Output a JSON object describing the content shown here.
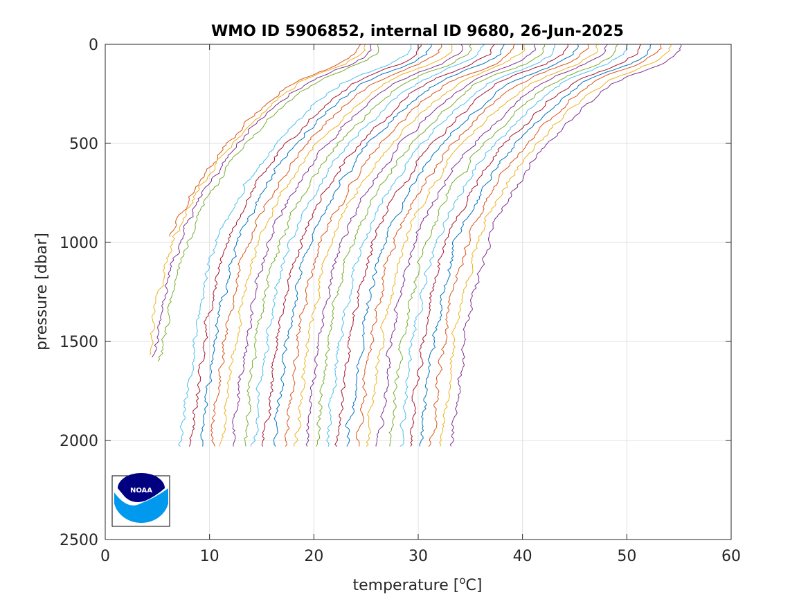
{
  "chart_data": {
    "type": "line",
    "title": "WMO ID 5906852, internal ID 9680, 26-Jun-2025",
    "xlabel": "temperature [",
    "xlabel_sup": "o",
    "xlabel_unit": "C]",
    "ylabel": "pressure [dbar]",
    "xlim": [
      0,
      60
    ],
    "ylim": [
      0,
      2500
    ],
    "y_reversed": true,
    "grid": true,
    "x_ticks": [
      "0",
      "10",
      "20",
      "30",
      "40",
      "50",
      "60"
    ],
    "y_ticks": [
      "0",
      "500",
      "1000",
      "1500",
      "2000",
      "2500"
    ],
    "profile_shape": {
      "pressure": [
        0,
        25,
        50,
        100,
        150,
        200,
        300,
        400,
        500,
        600,
        700,
        800,
        900,
        1000,
        1200,
        1400,
        1600,
        1800,
        2000,
        2030
      ],
      "temperature": [
        0,
        -0.1,
        -0.4,
        -2.0,
        -4.5,
        -6.5,
        -9.0,
        -11.0,
        -12.8,
        -14.3,
        -15.6,
        -16.7,
        -17.7,
        -18.5,
        -19.6,
        -20.4,
        -21.0,
        -21.5,
        -21.9,
        -22.0
      ]
    },
    "series": [
      {
        "name": "",
        "color": "#d95319",
        "surface_temp": 24.5,
        "max_pressure": 970
      },
      {
        "name": "",
        "color": "#edb120",
        "surface_temp": 25.0,
        "max_pressure": 1570
      },
      {
        "name": "",
        "color": "#7e2f8e",
        "surface_temp": 25.6,
        "max_pressure": 1580
      },
      {
        "name": "",
        "color": "#77ac30",
        "surface_temp": 26.3,
        "max_pressure": 1600
      },
      {
        "name": "",
        "color": "#4dbeee",
        "surface_temp": 29.2,
        "max_pressure": 2030
      },
      {
        "name": "",
        "color": "#a2142f",
        "surface_temp": 30.2,
        "max_pressure": 2030
      },
      {
        "name": "",
        "color": "#0072bd",
        "surface_temp": 31.2,
        "max_pressure": 2030
      },
      {
        "name": "",
        "color": "#d95319",
        "surface_temp": 32.2,
        "max_pressure": 2030
      },
      {
        "name": "",
        "color": "#edb120",
        "surface_temp": 33.2,
        "max_pressure": 2030
      },
      {
        "name": "",
        "color": "#7e2f8e",
        "surface_temp": 34.2,
        "max_pressure": 2030
      },
      {
        "name": "",
        "color": "#77ac30",
        "surface_temp": 35.2,
        "max_pressure": 2030
      },
      {
        "name": "",
        "color": "#4dbeee",
        "surface_temp": 36.2,
        "max_pressure": 2030
      },
      {
        "name": "",
        "color": "#a2142f",
        "surface_temp": 37.2,
        "max_pressure": 2030
      },
      {
        "name": "",
        "color": "#0072bd",
        "surface_temp": 38.2,
        "max_pressure": 2030
      },
      {
        "name": "",
        "color": "#d95319",
        "surface_temp": 39.2,
        "max_pressure": 2030
      },
      {
        "name": "",
        "color": "#edb120",
        "surface_temp": 40.2,
        "max_pressure": 2030
      },
      {
        "name": "",
        "color": "#7e2f8e",
        "surface_temp": 41.2,
        "max_pressure": 2030
      },
      {
        "name": "",
        "color": "#77ac30",
        "surface_temp": 42.2,
        "max_pressure": 2030
      },
      {
        "name": "",
        "color": "#4dbeee",
        "surface_temp": 43.2,
        "max_pressure": 2030
      },
      {
        "name": "",
        "color": "#a2142f",
        "surface_temp": 44.2,
        "max_pressure": 2030
      },
      {
        "name": "",
        "color": "#0072bd",
        "surface_temp": 45.2,
        "max_pressure": 2030
      },
      {
        "name": "",
        "color": "#d95319",
        "surface_temp": 46.2,
        "max_pressure": 2030
      },
      {
        "name": "",
        "color": "#edb120",
        "surface_temp": 47.2,
        "max_pressure": 2030
      },
      {
        "name": "",
        "color": "#7e2f8e",
        "surface_temp": 48.2,
        "max_pressure": 2030
      },
      {
        "name": "",
        "color": "#77ac30",
        "surface_temp": 49.2,
        "max_pressure": 2030
      },
      {
        "name": "",
        "color": "#4dbeee",
        "surface_temp": 50.2,
        "max_pressure": 2030
      },
      {
        "name": "",
        "color": "#a2142f",
        "surface_temp": 51.2,
        "max_pressure": 2030
      },
      {
        "name": "",
        "color": "#0072bd",
        "surface_temp": 52.2,
        "max_pressure": 2030
      },
      {
        "name": "",
        "color": "#d95319",
        "surface_temp": 53.2,
        "max_pressure": 2030
      },
      {
        "name": "",
        "color": "#edb120",
        "surface_temp": 54.2,
        "max_pressure": 2030
      },
      {
        "name": "",
        "color": "#7e2f8e",
        "surface_temp": 55.2,
        "max_pressure": 2030
      }
    ]
  },
  "logo": {
    "text": "NOAA",
    "color_dark": "#000080",
    "color_light": "#0099ee"
  }
}
